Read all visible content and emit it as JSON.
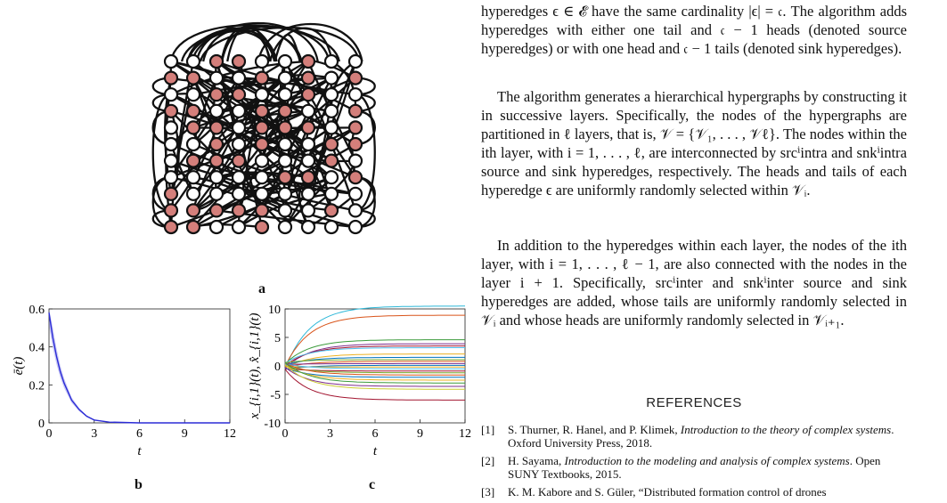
{
  "figure": {
    "panel_a_label": "a",
    "panel_b_label": "b",
    "panel_c_label": "c"
  },
  "chart_data": [
    {
      "type": "line",
      "panel": "b",
      "xlabel": "t",
      "ylabel": "ē(t)",
      "xlim": [
        0,
        12
      ],
      "ylim": [
        0,
        0.6
      ],
      "xticks": [
        "0",
        "3",
        "6",
        "9",
        "12"
      ],
      "yticks": [
        "0",
        "0.2",
        "0.4",
        "0.6"
      ],
      "grid": false,
      "color": "#2b2bd6",
      "series": [
        {
          "x": [
            0,
            0.25,
            0.5,
            0.75,
            1,
            1.5,
            2,
            2.5,
            3,
            4,
            6,
            9,
            12
          ],
          "values": [
            0.58,
            0.45,
            0.35,
            0.27,
            0.21,
            0.12,
            0.07,
            0.035,
            0.015,
            0.004,
            0.0,
            0.0,
            0.0
          ]
        }
      ]
    },
    {
      "type": "line",
      "panel": "c",
      "xlabel": "t",
      "ylabel": "x_{i,1}(t), x̂_{i,1}(t)",
      "xlim": [
        0,
        12
      ],
      "ylim": [
        -10,
        10
      ],
      "xticks": [
        "0",
        "3",
        "6",
        "9",
        "12"
      ],
      "yticks": [
        "-10",
        "-5",
        "0",
        "5",
        "10"
      ],
      "grid": false,
      "final_values": [
        10.5,
        8.9,
        4.6,
        3.9,
        3.5,
        3.2,
        2.1,
        1.5,
        1.1,
        0.8,
        0.4,
        0.1,
        -0.2,
        -0.5,
        -0.9,
        -1.2,
        -1.6,
        -2.0,
        -2.5,
        -3.0,
        -3.6,
        -4.1,
        -6.0
      ],
      "colors": [
        "#2eb8d8",
        "#d9541a",
        "#3c9b3c",
        "#7e2f8e",
        "#a2142f",
        "#4dbeee",
        "#edb120",
        "#0072bd",
        "#77ac30",
        "#d95319",
        "#7e2f8e",
        "#0072bd",
        "#edb120",
        "#4dbeee",
        "#a2142f",
        "#77ac30",
        "#d95319",
        "#0072bd",
        "#edb120",
        "#3c9b3c",
        "#7e2f8e",
        "#cccc33",
        "#a2142f"
      ]
    }
  ],
  "body": {
    "para1": "hyperedges ϵ ∈ 𝓔 have the same cardinality |ϵ| = 𝔠. The algorithm adds hyperedges with either one tail and 𝔠 − 1 heads (denoted source hyperedges) or with one head and 𝔠 − 1 tails (denoted sink hyperedges).",
    "para2": "The algorithm generates a hierarchical hypergraphs by constructing it in successive layers. Specifically, the nodes of the hypergraphs are partitioned in ℓ layers, that is, 𝒱 = {𝒱₁, . . . , 𝒱ℓ}. The nodes within the ith layer, with i = 1, . . . , ℓ, are interconnected by srcⁱintra and snkⁱintra source and sink hyperedges, respectively. The heads and tails of each hyperedge ϵ are uniformly randomly selected within 𝒱ᵢ.",
    "para3": "In addition to the hyperedges within each layer, the nodes of the ith layer, with i = 1, . . . , ℓ − 1, are also connected with the nodes in the layer i + 1. Specifically, srcⁱinter and snkⁱinter source and sink hyperedges are added, whose tails are uniformly randomly selected in 𝒱ᵢ and whose heads are uniformly randomly selected in 𝒱ᵢ₊₁."
  },
  "references": {
    "title": "REFERENCES",
    "items": [
      {
        "num": "[1]",
        "authors": "S. Thurner, R. Hanel, and P. Klimek, ",
        "title": "Introduction to the theory of complex systems",
        "rest": ".  Oxford University Press, 2018."
      },
      {
        "num": "[2]",
        "authors": "H. Sayama, ",
        "title": "Introduction to the modeling and analysis of complex systems",
        "rest": ".  Open SUNY Textbooks, 2015."
      },
      {
        "num": "[3]",
        "authors": "K. M. Kabore and S. Güler, “Distributed formation control of drones",
        "title": "",
        "rest": ""
      }
    ]
  }
}
